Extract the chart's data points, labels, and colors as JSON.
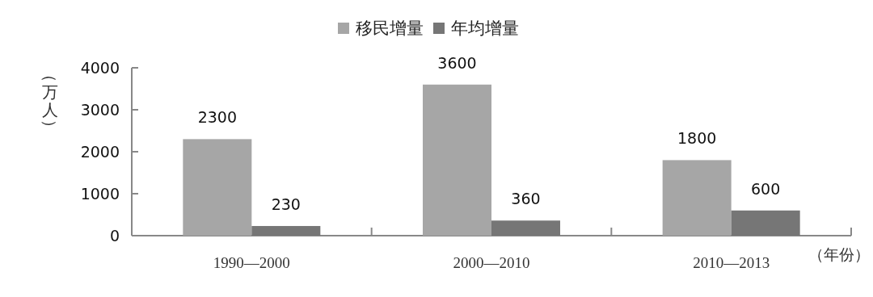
{
  "chart_data": {
    "type": "bar",
    "categories": [
      "1990—2000",
      "2000—2010",
      "2010—2013"
    ],
    "series": [
      {
        "name": "移民增量",
        "color": "#a6a6a6",
        "values": [
          2300,
          3600,
          1800
        ]
      },
      {
        "name": "年均增量",
        "color": "#767676",
        "values": [
          230,
          360,
          600
        ]
      }
    ],
    "ylabel": "（万人）",
    "xlabel": "（年份）",
    "ylim": [
      0,
      4000
    ],
    "yticks": [
      0,
      1000,
      2000,
      3000,
      4000
    ],
    "data_labels": true,
    "legend": "top",
    "grid": false
  }
}
